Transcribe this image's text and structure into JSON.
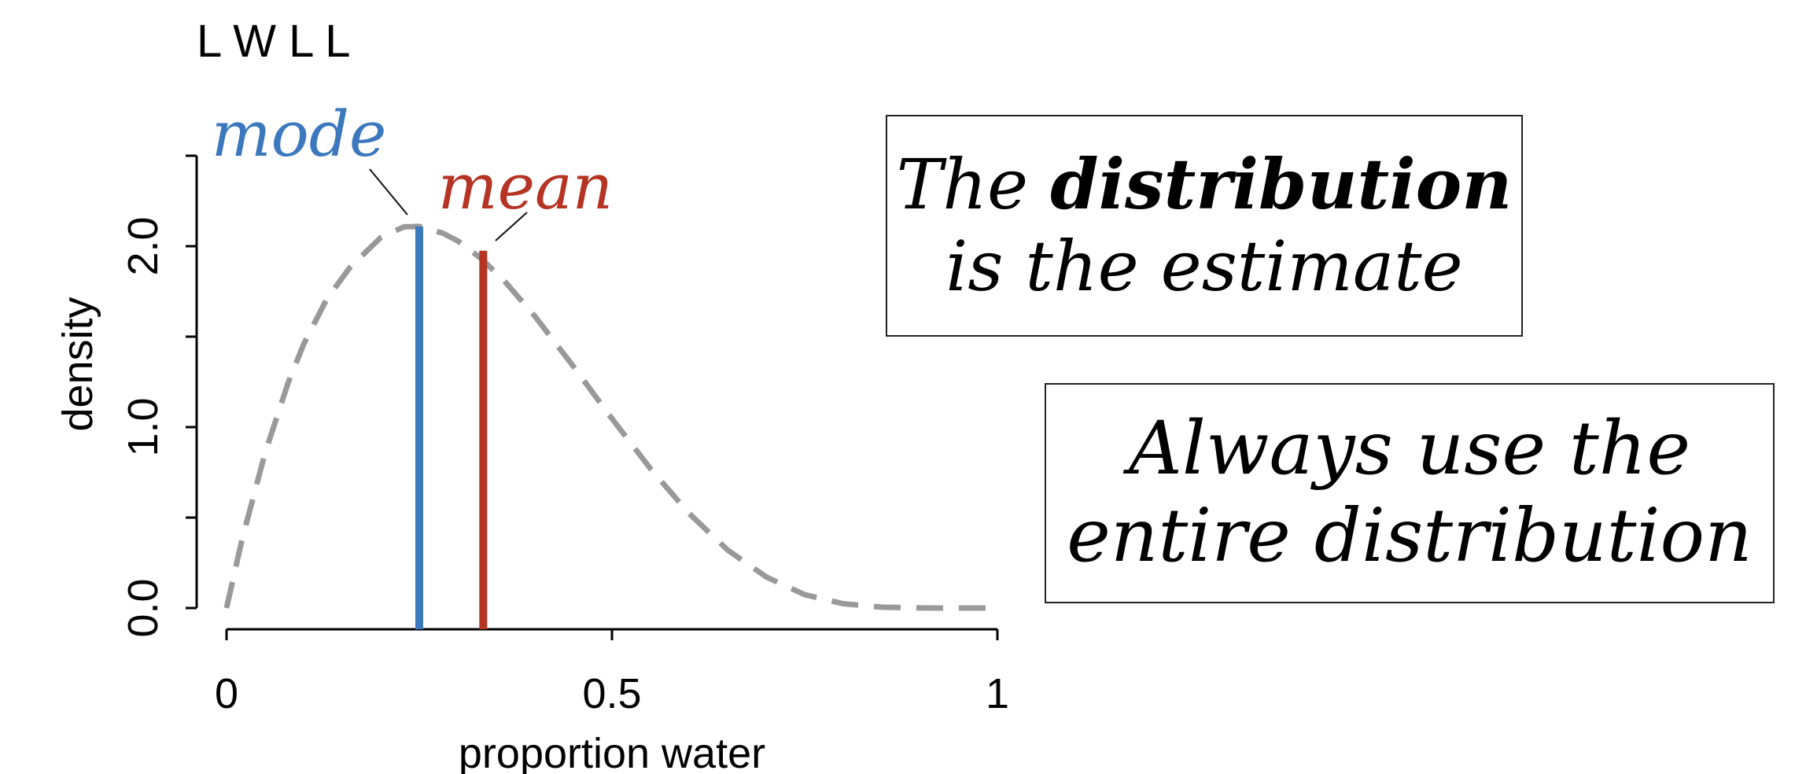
{
  "chart_data": {
    "type": "line",
    "title": "L W L L",
    "xlabel": "proportion water",
    "ylabel": "density",
    "xlim": [
      0,
      1
    ],
    "ylim": [
      0,
      2.5
    ],
    "x_ticks": [
      0,
      0.5,
      1
    ],
    "x_tick_labels": [
      "0",
      "0.5",
      "1"
    ],
    "y_ticks": [
      0,
      0.5,
      1.0,
      1.5,
      2.0,
      2.5
    ],
    "y_tick_labels": [
      "0.0",
      "",
      "1.0",
      "",
      "2.0",
      ""
    ],
    "grid": false,
    "legend": "none",
    "curve": {
      "style": "dashed",
      "color": "#999999",
      "x": [
        0,
        0.02,
        0.05,
        0.08,
        0.1,
        0.13,
        0.16,
        0.2,
        0.23,
        0.25,
        0.28,
        0.3,
        0.33,
        0.36,
        0.4,
        0.45,
        0.5,
        0.55,
        0.6,
        0.65,
        0.7,
        0.75,
        0.8,
        0.85,
        0.9,
        0.95,
        1.0
      ],
      "y": [
        0,
        0.377,
        0.857,
        1.246,
        1.458,
        1.708,
        1.882,
        2.048,
        2.107,
        2.109,
        2.073,
        2.029,
        1.933,
        1.81,
        1.613,
        1.335,
        1.047,
        0.77,
        0.523,
        0.321,
        0.172,
        0.074,
        0.024,
        0.005,
        0.0005,
        1e-05,
        0
      ]
    },
    "markers": [
      {
        "label": "mode",
        "x": 0.25,
        "y": 2.109,
        "color": "#3b78bd"
      },
      {
        "label": "mean",
        "x": 0.333,
        "y": 1.975,
        "color": "#b53424"
      }
    ]
  },
  "text_boxes": [
    {
      "line1_pre": "The ",
      "line1_bold": "distribution",
      "line2": "is the estimate"
    },
    {
      "line1": "Always use the",
      "line2": "entire distribution"
    }
  ],
  "colors": {
    "axis": "#000000",
    "curve": "#999999",
    "mode": "#3b78bd",
    "mean": "#b53424"
  }
}
